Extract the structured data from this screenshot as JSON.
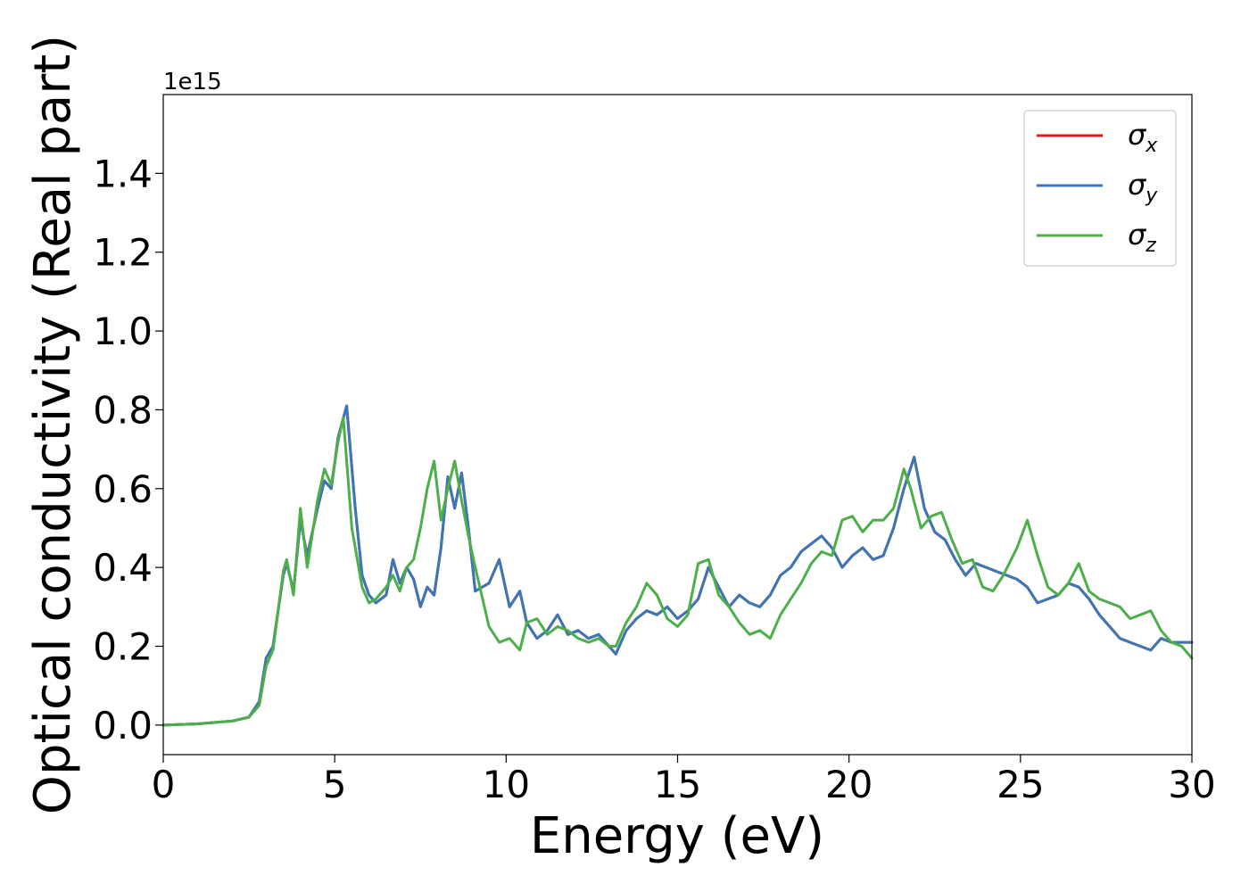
{
  "chart_data": {
    "type": "line",
    "xlabel": "Energy (eV)",
    "ylabel": "Optical conductivity (Real part)",
    "offset_text": "1e15",
    "xlim": [
      0,
      30
    ],
    "ylim": [
      -0.075,
      1.6
    ],
    "xticks": [
      0,
      5,
      10,
      15,
      20,
      25,
      30
    ],
    "yticks": [
      0.0,
      0.2,
      0.4,
      0.6,
      0.8,
      1.0,
      1.2,
      1.4
    ],
    "xtick_labels": [
      "0",
      "5",
      "10",
      "15",
      "20",
      "25",
      "30"
    ],
    "ytick_labels": [
      "0.0",
      "0.2",
      "0.4",
      "0.6",
      "0.8",
      "1.0",
      "1.2",
      "1.4"
    ],
    "legend_position": "top-right",
    "grid": false,
    "series": [
      {
        "name": "σx",
        "symbol": "σ",
        "subscript": "x",
        "color": "#e41a1c",
        "x": [
          0,
          1,
          2,
          2.5,
          2.8,
          3.0,
          3.2,
          3.5,
          3.6,
          3.8,
          4.0,
          4.2,
          4.5,
          4.7,
          4.9,
          5.1,
          5.35,
          5.6,
          5.8,
          6.0,
          6.2,
          6.5,
          6.7,
          6.9,
          7.1,
          7.3,
          7.5,
          7.7,
          7.9,
          8.1,
          8.3,
          8.5,
          8.7,
          8.9,
          9.1,
          9.5,
          9.8,
          10.1,
          10.4,
          10.6,
          10.9,
          11.2,
          11.5,
          11.8,
          12.1,
          12.4,
          12.7,
          13.0,
          13.2,
          13.5,
          13.8,
          14.1,
          14.4,
          14.7,
          15.0,
          15.3,
          15.6,
          15.9,
          16.2,
          16.5,
          16.8,
          17.1,
          17.4,
          17.7,
          18.0,
          18.3,
          18.6,
          18.9,
          19.2,
          19.5,
          19.8,
          20.1,
          20.4,
          20.7,
          21.0,
          21.3,
          21.6,
          21.9,
          22.2,
          22.5,
          22.8,
          23.1,
          23.4,
          23.7,
          24.0,
          24.3,
          24.6,
          24.9,
          25.2,
          25.5,
          25.8,
          26.1,
          26.4,
          26.7,
          27.0,
          27.3,
          27.6,
          27.9,
          28.2,
          28.5,
          28.8,
          29.1,
          29.4,
          29.7,
          30.0
        ],
        "y": [
          0.0,
          0.003,
          0.01,
          0.02,
          0.06,
          0.17,
          0.2,
          0.38,
          0.41,
          0.34,
          0.52,
          0.43,
          0.55,
          0.62,
          0.6,
          0.73,
          0.81,
          0.55,
          0.38,
          0.33,
          0.31,
          0.33,
          0.42,
          0.36,
          0.4,
          0.37,
          0.3,
          0.35,
          0.33,
          0.45,
          0.63,
          0.55,
          0.64,
          0.5,
          0.34,
          0.36,
          0.42,
          0.3,
          0.34,
          0.26,
          0.22,
          0.24,
          0.28,
          0.23,
          0.24,
          0.22,
          0.23,
          0.2,
          0.18,
          0.24,
          0.27,
          0.29,
          0.28,
          0.3,
          0.27,
          0.29,
          0.32,
          0.4,
          0.35,
          0.3,
          0.33,
          0.31,
          0.3,
          0.33,
          0.38,
          0.4,
          0.44,
          0.46,
          0.48,
          0.45,
          0.4,
          0.43,
          0.45,
          0.42,
          0.43,
          0.5,
          0.6,
          0.68,
          0.55,
          0.49,
          0.47,
          0.42,
          0.38,
          0.41,
          0.4,
          0.39,
          0.38,
          0.37,
          0.35,
          0.31,
          0.32,
          0.33,
          0.36,
          0.35,
          0.32,
          0.28,
          0.25,
          0.22,
          0.21,
          0.2,
          0.19,
          0.22,
          0.21,
          0.21,
          0.21
        ]
      },
      {
        "name": "σy",
        "symbol": "σ",
        "subscript": "y",
        "color": "#3a77b8",
        "x": [
          0,
          1,
          2,
          2.5,
          2.8,
          3.0,
          3.2,
          3.5,
          3.6,
          3.8,
          4.0,
          4.2,
          4.5,
          4.7,
          4.9,
          5.1,
          5.35,
          5.6,
          5.8,
          6.0,
          6.2,
          6.5,
          6.7,
          6.9,
          7.1,
          7.3,
          7.5,
          7.7,
          7.9,
          8.1,
          8.3,
          8.5,
          8.7,
          8.9,
          9.1,
          9.5,
          9.8,
          10.1,
          10.4,
          10.6,
          10.9,
          11.2,
          11.5,
          11.8,
          12.1,
          12.4,
          12.7,
          13.0,
          13.2,
          13.5,
          13.8,
          14.1,
          14.4,
          14.7,
          15.0,
          15.3,
          15.6,
          15.9,
          16.2,
          16.5,
          16.8,
          17.1,
          17.4,
          17.7,
          18.0,
          18.3,
          18.6,
          18.9,
          19.2,
          19.5,
          19.8,
          20.1,
          20.4,
          20.7,
          21.0,
          21.3,
          21.6,
          21.9,
          22.2,
          22.5,
          22.8,
          23.1,
          23.4,
          23.7,
          24.0,
          24.3,
          24.6,
          24.9,
          25.2,
          25.5,
          25.8,
          26.1,
          26.4,
          26.7,
          27.0,
          27.3,
          27.6,
          27.9,
          28.2,
          28.5,
          28.8,
          29.1,
          29.4,
          29.7,
          30.0
        ],
        "y": [
          0.0,
          0.003,
          0.01,
          0.02,
          0.06,
          0.17,
          0.2,
          0.38,
          0.41,
          0.34,
          0.52,
          0.43,
          0.55,
          0.62,
          0.6,
          0.73,
          0.81,
          0.55,
          0.38,
          0.33,
          0.31,
          0.33,
          0.42,
          0.36,
          0.4,
          0.37,
          0.3,
          0.35,
          0.33,
          0.45,
          0.63,
          0.55,
          0.64,
          0.5,
          0.34,
          0.36,
          0.42,
          0.3,
          0.34,
          0.26,
          0.22,
          0.24,
          0.28,
          0.23,
          0.24,
          0.22,
          0.23,
          0.2,
          0.18,
          0.24,
          0.27,
          0.29,
          0.28,
          0.3,
          0.27,
          0.29,
          0.32,
          0.4,
          0.35,
          0.3,
          0.33,
          0.31,
          0.3,
          0.33,
          0.38,
          0.4,
          0.44,
          0.46,
          0.48,
          0.45,
          0.4,
          0.43,
          0.45,
          0.42,
          0.43,
          0.5,
          0.6,
          0.68,
          0.55,
          0.49,
          0.47,
          0.42,
          0.38,
          0.41,
          0.4,
          0.39,
          0.38,
          0.37,
          0.35,
          0.31,
          0.32,
          0.33,
          0.36,
          0.35,
          0.32,
          0.28,
          0.25,
          0.22,
          0.21,
          0.2,
          0.19,
          0.22,
          0.21,
          0.21,
          0.21
        ]
      },
      {
        "name": "σz",
        "symbol": "σ",
        "subscript": "z",
        "color": "#4daf4a",
        "x": [
          0,
          1,
          2,
          2.5,
          2.8,
          3.0,
          3.2,
          3.5,
          3.6,
          3.8,
          4.0,
          4.2,
          4.5,
          4.7,
          4.9,
          5.1,
          5.25,
          5.5,
          5.8,
          6.0,
          6.2,
          6.5,
          6.7,
          6.9,
          7.1,
          7.3,
          7.5,
          7.7,
          7.9,
          8.1,
          8.3,
          8.5,
          8.7,
          8.9,
          9.1,
          9.5,
          9.8,
          10.1,
          10.4,
          10.6,
          10.9,
          11.2,
          11.5,
          11.8,
          12.1,
          12.4,
          12.7,
          13.0,
          13.2,
          13.5,
          13.8,
          14.1,
          14.4,
          14.7,
          15.0,
          15.3,
          15.6,
          15.9,
          16.2,
          16.5,
          16.8,
          17.1,
          17.4,
          17.7,
          18.0,
          18.3,
          18.6,
          18.9,
          19.2,
          19.5,
          19.8,
          20.1,
          20.4,
          20.7,
          21.0,
          21.3,
          21.6,
          21.8,
          22.1,
          22.4,
          22.7,
          23.0,
          23.3,
          23.6,
          23.9,
          24.2,
          24.5,
          24.9,
          25.2,
          25.5,
          25.8,
          26.1,
          26.4,
          26.7,
          27.0,
          27.3,
          27.6,
          27.9,
          28.2,
          28.5,
          28.8,
          29.1,
          29.4,
          29.7,
          30.0
        ],
        "y": [
          0.0,
          0.003,
          0.01,
          0.02,
          0.05,
          0.15,
          0.19,
          0.39,
          0.42,
          0.33,
          0.55,
          0.4,
          0.57,
          0.65,
          0.61,
          0.72,
          0.78,
          0.5,
          0.35,
          0.31,
          0.32,
          0.35,
          0.38,
          0.34,
          0.4,
          0.42,
          0.5,
          0.6,
          0.67,
          0.52,
          0.6,
          0.67,
          0.57,
          0.48,
          0.4,
          0.25,
          0.21,
          0.22,
          0.19,
          0.26,
          0.27,
          0.23,
          0.25,
          0.24,
          0.22,
          0.21,
          0.22,
          0.2,
          0.2,
          0.26,
          0.3,
          0.36,
          0.33,
          0.27,
          0.25,
          0.28,
          0.41,
          0.42,
          0.33,
          0.3,
          0.26,
          0.23,
          0.24,
          0.22,
          0.28,
          0.32,
          0.36,
          0.41,
          0.44,
          0.43,
          0.52,
          0.53,
          0.49,
          0.52,
          0.52,
          0.55,
          0.65,
          0.6,
          0.5,
          0.53,
          0.54,
          0.47,
          0.41,
          0.42,
          0.35,
          0.34,
          0.38,
          0.45,
          0.52,
          0.43,
          0.35,
          0.33,
          0.36,
          0.41,
          0.34,
          0.32,
          0.31,
          0.3,
          0.27,
          0.28,
          0.29,
          0.24,
          0.21,
          0.2,
          0.17
        ]
      }
    ]
  }
}
